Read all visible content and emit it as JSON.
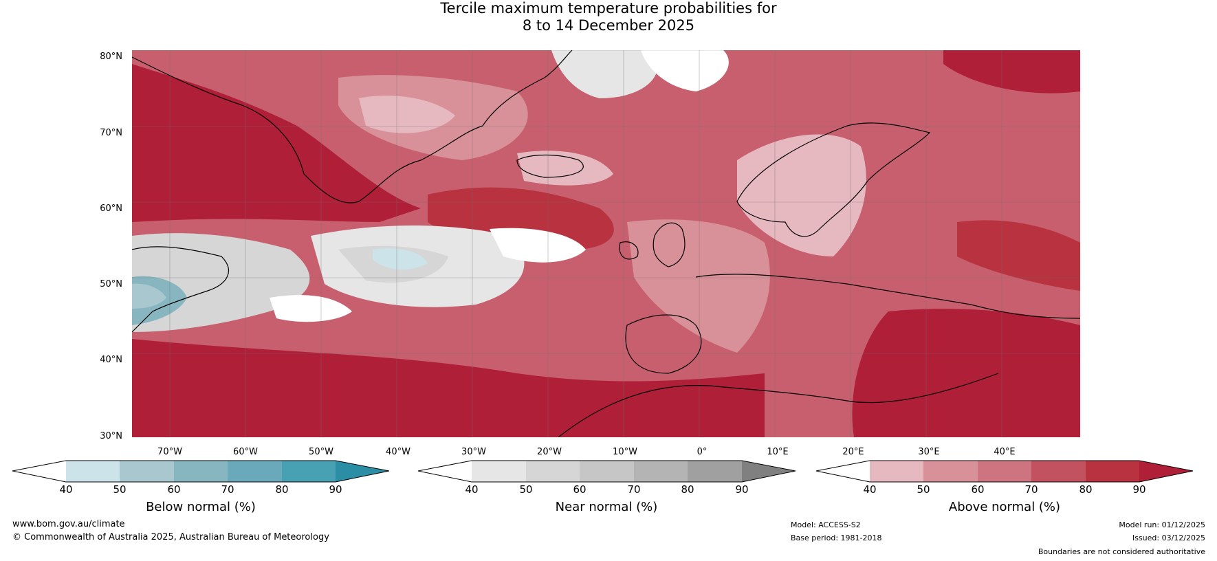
{
  "title": {
    "line1": "Tercile maximum temperature probabilities for",
    "line2": "8 to 14 December 2025"
  },
  "map": {
    "latitude_labels": [
      "80°N",
      "70°N",
      "60°N",
      "50°N",
      "40°N",
      "30°N"
    ],
    "longitude_labels": [
      "70°W",
      "60°W",
      "50°W",
      "40°W",
      "30°W",
      "20°W",
      "10°W",
      "0°",
      "10°E",
      "20°E",
      "30°E",
      "40°E"
    ]
  },
  "colorbars": [
    {
      "title": "Below normal (%)",
      "ticks": [
        "40",
        "50",
        "60",
        "70",
        "80",
        "90"
      ],
      "colors": [
        "#ffffff",
        "#cde3ea",
        "#a8c7cf",
        "#88b6c0",
        "#6aa9b9",
        "#48a1b2",
        "#2b8ea4"
      ]
    },
    {
      "title": "Near normal (%)",
      "ticks": [
        "40",
        "50",
        "60",
        "70",
        "80",
        "90"
      ],
      "colors": [
        "#ffffff",
        "#e6e6e6",
        "#d6d6d6",
        "#c6c6c6",
        "#b4b4b4",
        "#a0a0a0",
        "#808080"
      ]
    },
    {
      "title": "Above normal (%)",
      "ticks": [
        "40",
        "50",
        "60",
        "70",
        "80",
        "90"
      ],
      "colors": [
        "#ffffff",
        "#e6b9c0",
        "#d99199",
        "#ce7480",
        "#c2525f",
        "#b8323f",
        "#b01f38"
      ]
    }
  ],
  "footer": {
    "website": "www.bom.gov.au/climate",
    "copyright": "© Commonwealth of Australia 2025, Australian Bureau of Meteorology",
    "model": "Model: ACCESS-S2",
    "base_period": "Base period: 1981-2018",
    "model_run": "Model run: 01/12/2025",
    "issued": "Issued: 03/12/2025",
    "disclaimer": "Boundaries are not considered authoritative"
  }
}
